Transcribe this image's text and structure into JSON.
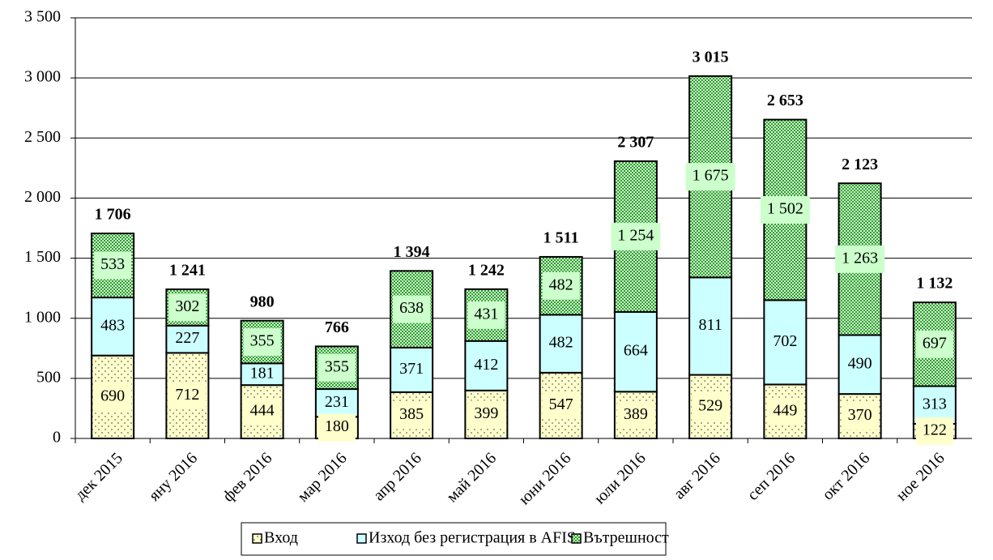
{
  "chart_data": {
    "type": "stacked_bar",
    "categories": [
      "дек 2015",
      "яну 2016",
      "фев 2016",
      "мар 2016",
      "апр 2016",
      "май 2016",
      "юни 2016",
      "юли 2016",
      "авг 2016",
      "сеп 2016",
      "окт 2016",
      "ное 2016"
    ],
    "series": [
      {
        "name": "Вход",
        "color": "#ffffcc",
        "values": [
          690,
          712,
          444,
          180,
          385,
          399,
          547,
          389,
          529,
          449,
          370,
          122
        ]
      },
      {
        "name": "Изход без регистрация в AFIS",
        "color": "#ccffff",
        "values": [
          483,
          227,
          181,
          231,
          371,
          412,
          482,
          664,
          811,
          702,
          490,
          313
        ]
      },
      {
        "name": "Вътрешност",
        "color": "#339933",
        "values": [
          533,
          302,
          355,
          355,
          638,
          431,
          482,
          1254,
          1675,
          1502,
          1263,
          697
        ],
        "value_labels": [
          "533",
          "302",
          "355",
          "355",
          "638",
          "431",
          "482",
          "1 254",
          "1 675",
          "1 502",
          "1 263",
          "697"
        ]
      }
    ],
    "totals": [
      1706,
      1241,
      980,
      766,
      1394,
      1242,
      1511,
      2307,
      3015,
      2653,
      2123,
      1132
    ],
    "total_labels": [
      "1 706",
      "1 241",
      "980",
      "766",
      "1 394",
      "1 242",
      "1 511",
      "2 307",
      "3 015",
      "2 653",
      "2 123",
      "1 132"
    ],
    "ylim": [
      0,
      3500
    ],
    "yticks": [
      0,
      500,
      {
        "value": 1000,
        "label": "1 000"
      },
      {
        "value": 1500,
        "label": "1 500"
      },
      {
        "value": 2000,
        "label": "2 000"
      },
      {
        "value": 2500,
        "label": "2 500"
      },
      {
        "value": 3000,
        "label": "3 000"
      },
      {
        "value": 3500,
        "label": "3 500"
      }
    ],
    "grid": true,
    "legend": "bottom"
  }
}
